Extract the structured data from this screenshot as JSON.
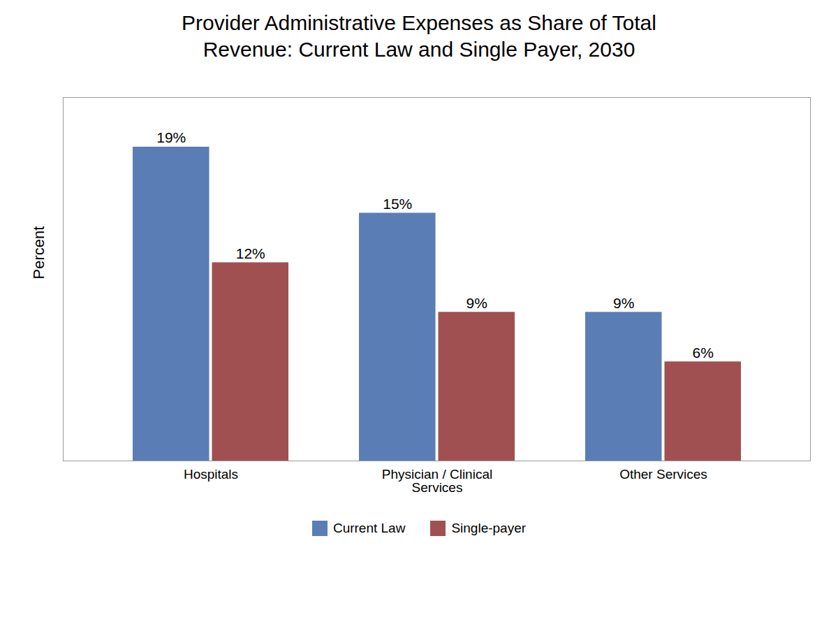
{
  "chart_data": {
    "type": "bar",
    "title": "Provider Administrative Expenses as Share of Total\nRevenue: Current Law and Single Payer, 2030",
    "categories": [
      "Hospitals",
      "Physician / Clinical\nServices",
      "Other Services"
    ],
    "series": [
      {
        "name": "Current Law",
        "color": "#5B7DB5",
        "values": [
          19,
          15,
          9
        ],
        "value_labels": [
          "19%",
          "15%",
          "9%"
        ]
      },
      {
        "name": "Single-payer",
        "color": "#A05050",
        "values": [
          12,
          9,
          6
        ],
        "value_labels": [
          "12%",
          "9%",
          "6%"
        ]
      }
    ],
    "ylabel": "Percent",
    "ylim": [
      0,
      22
    ],
    "yticks": [],
    "grid": false,
    "legend": "bottom",
    "data_labels": true,
    "tick_labels": "x"
  }
}
